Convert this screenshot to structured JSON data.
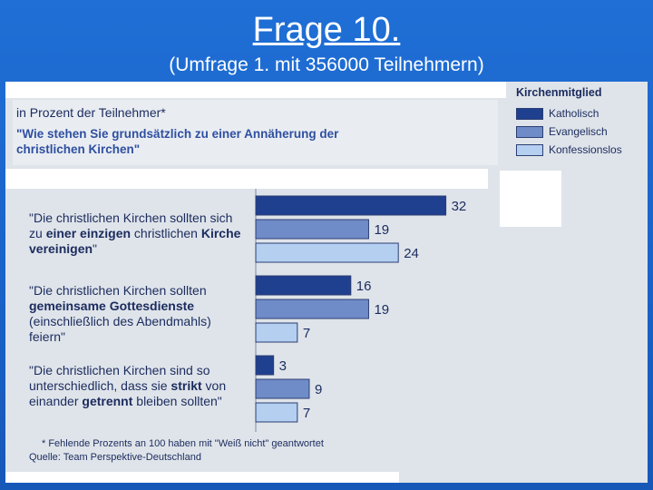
{
  "slide": {
    "title": "Frage 10.",
    "subtitle": "(Umfrage 1. mit 356000 Teilnehmern)"
  },
  "header": {
    "line1": "in Prozent der Teilnehmer*",
    "line2": "\"Wie stehen Sie grundsätzlich zu einer Annäherung der christlichen Kirchen\""
  },
  "legend": {
    "title": "Kirchenmitglied",
    "items": [
      {
        "label": "Katholisch",
        "color": "#1f3f8f"
      },
      {
        "label": "Evangelisch",
        "color": "#6f8cc8"
      },
      {
        "label": "Konfessionslos",
        "color": "#b4cff0"
      }
    ]
  },
  "questions": [
    {
      "parts": [
        {
          "text": "\"Die christlichen Kirchen sollten sich zu ",
          "bold": false
        },
        {
          "text": "einer einzigen",
          "bold": true
        },
        {
          "text": " christlichen ",
          "bold": false
        },
        {
          "text": "Kirche vereinigen",
          "bold": true
        },
        {
          "text": "\"",
          "bold": false
        }
      ]
    },
    {
      "parts": [
        {
          "text": "\"Die christlichen Kirchen sollten ",
          "bold": false
        },
        {
          "text": "gemeinsame Gottesdienste",
          "bold": true
        },
        {
          "text": " (einschließlich des Abendmahls) feiern\"",
          "bold": false
        }
      ]
    },
    {
      "parts": [
        {
          "text": "\"Die christlichen Kirchen sind so unterschiedlich, dass sie ",
          "bold": false
        },
        {
          "text": "strikt",
          "bold": true
        },
        {
          "text": " von einander ",
          "bold": false
        },
        {
          "text": "getrennt",
          "bold": true
        },
        {
          "text": " bleiben sollten\"",
          "bold": false
        }
      ]
    }
  ],
  "footnote": "* Fehlende Prozents an 100 haben mit \"Weiß nicht\" geantwortet",
  "source": "Quelle: Team Perspektive-Deutschland",
  "chart_data": {
    "type": "bar",
    "orientation": "horizontal",
    "categories": [
      "\"Die christlichen Kirchen sollten sich zu einer einzigen christlichen Kirche vereinigen\"",
      "\"Die christlichen Kirchen sollten gemeinsame Gottesdienste (einschließlich des Abendmahls) feiern\"",
      "\"Die christlichen Kirchen sind so unterschiedlich, dass sie strikt von einander getrennt bleiben sollten\""
    ],
    "series": [
      {
        "name": "Katholisch",
        "values": [
          32,
          16,
          3
        ],
        "color": "#1f3f8f"
      },
      {
        "name": "Evangelisch",
        "values": [
          19,
          19,
          9
        ],
        "color": "#6f8cc8"
      },
      {
        "name": "Konfessionslos",
        "values": [
          24,
          7,
          7
        ],
        "color": "#b4cff0"
      }
    ],
    "title": "\"Wie stehen Sie grundsätzlich zu einer Annäherung der christlichen Kirchen\"",
    "xlabel": "",
    "ylabel": "",
    "grid": false,
    "legend_position": "top-right",
    "value_labels": true
  }
}
